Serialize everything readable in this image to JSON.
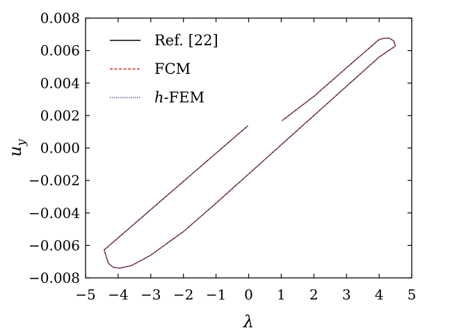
{
  "chart_data": {
    "type": "line",
    "title": "",
    "xlabel": "λ",
    "ylabel": "u_y",
    "xlim": [
      -5,
      5
    ],
    "ylim": [
      -0.008,
      0.008
    ],
    "xticks": [
      -5,
      -4,
      -3,
      -2,
      -1,
      0,
      1,
      2,
      3,
      4,
      5
    ],
    "xtick_labels": [
      "−5",
      "−4",
      "−3",
      "−2",
      "−1",
      "0",
      "1",
      "2",
      "3",
      "4",
      "5"
    ],
    "yticks": [
      0.008,
      0.006,
      0.004,
      0.002,
      0.0,
      -0.002,
      -0.004,
      -0.006,
      -0.008
    ],
    "ytick_labels": [
      "0.008",
      "0.006",
      "0.004",
      "0.002",
      "0.000",
      "−0.002",
      "−0.004",
      "−0.006",
      "−0.008"
    ],
    "grid": false,
    "legend_position": "top-left",
    "series": [
      {
        "name": "Ref. [22]",
        "color": "#000000",
        "style": "solid",
        "segments": [
          {
            "x": [
              -0.02,
              -4.43
            ],
            "y": [
              0.00138,
              -0.00628
            ]
          },
          {
            "x": [
              -4.43,
              -4.3,
              -4.15,
              -3.95,
              -3.6,
              -3.0,
              -2.0,
              -1.0,
              0.0,
              1.0,
              2.0,
              3.0,
              4.0,
              4.5
            ],
            "y": [
              -0.00628,
              -0.0071,
              -0.00735,
              -0.0074,
              -0.00725,
              -0.0066,
              -0.00515,
              -0.0034,
              -0.0016,
              0.0002,
              0.002,
              0.0038,
              0.0056,
              0.00628
            ]
          },
          {
            "x": [
              4.5,
              4.45,
              4.3,
              4.15,
              4.0,
              3.0,
              2.0,
              1.02
            ],
            "y": [
              0.00628,
              0.0066,
              0.00677,
              0.00675,
              0.00668,
              0.00494,
              0.00318,
              0.00168
            ]
          }
        ]
      },
      {
        "name": "FCM",
        "color": "#e8201c",
        "style": "dashed",
        "segments": [
          {
            "x": [
              -0.02,
              -4.43
            ],
            "y": [
              0.00138,
              -0.00628
            ]
          },
          {
            "x": [
              -4.43,
              -4.3,
              -4.15,
              -3.95,
              -3.6,
              -3.0,
              -2.0,
              -1.0,
              0.0,
              1.0,
              2.0,
              3.0,
              4.0,
              4.5
            ],
            "y": [
              -0.00628,
              -0.0071,
              -0.00735,
              -0.0074,
              -0.00725,
              -0.0066,
              -0.00515,
              -0.0034,
              -0.0016,
              0.0002,
              0.002,
              0.0038,
              0.0056,
              0.00628
            ]
          },
          {
            "x": [
              4.5,
              4.45,
              4.3,
              4.15,
              4.0,
              3.0,
              2.0,
              1.02
            ],
            "y": [
              0.00628,
              0.0066,
              0.00677,
              0.00675,
              0.00668,
              0.00494,
              0.00318,
              0.00168
            ]
          }
        ]
      },
      {
        "name": "h-FEM",
        "color": "#4a4aa8",
        "style": "dotted",
        "segments": [
          {
            "x": [
              -0.02,
              -4.43
            ],
            "y": [
              0.00138,
              -0.00628
            ]
          },
          {
            "x": [
              -4.43,
              -4.3,
              -4.15,
              -3.95,
              -3.6,
              -3.0,
              -2.0,
              -1.0,
              0.0,
              1.0,
              2.0,
              3.0,
              4.0,
              4.5
            ],
            "y": [
              -0.00628,
              -0.0071,
              -0.00735,
              -0.0074,
              -0.00725,
              -0.0066,
              -0.00515,
              -0.0034,
              -0.0016,
              0.0002,
              0.002,
              0.0038,
              0.0056,
              0.00628
            ]
          },
          {
            "x": [
              4.5,
              4.45,
              4.3,
              4.15,
              4.0,
              3.0,
              2.0,
              1.02
            ],
            "y": [
              0.00628,
              0.0066,
              0.00677,
              0.00675,
              0.00668,
              0.00494,
              0.00318,
              0.00168
            ]
          }
        ]
      }
    ]
  }
}
